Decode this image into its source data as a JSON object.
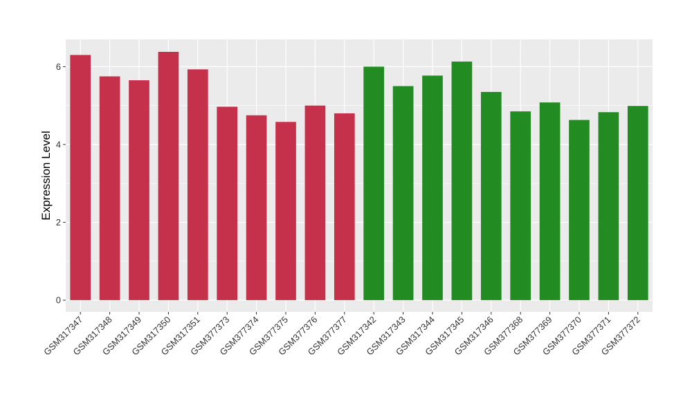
{
  "chart_data": {
    "type": "bar",
    "title": "",
    "xlabel": "",
    "ylabel": "Expression Level",
    "ylim": [
      -0.3,
      6.7
    ],
    "yticks": [
      0,
      2,
      4,
      6
    ],
    "grid": true,
    "legend": "none",
    "colors": {
      "group1": "#C5304A",
      "group2": "#228B22",
      "panel": "#EBEBEB",
      "grid": "#FFFFFF",
      "tick": "#333333"
    },
    "categories": [
      "GSM317347",
      "GSM317348",
      "GSM317349",
      "GSM317350",
      "GSM317351",
      "GSM377373",
      "GSM377374",
      "GSM377375",
      "GSM377376",
      "GSM377377",
      "GSM317342",
      "GSM317343",
      "GSM317344",
      "GSM317345",
      "GSM317346",
      "GSM377368",
      "GSM377369",
      "GSM377370",
      "GSM377371",
      "GSM377372"
    ],
    "values": [
      6.3,
      5.75,
      5.65,
      6.38,
      5.93,
      4.97,
      4.75,
      4.58,
      5.0,
      4.8,
      6.0,
      5.5,
      5.77,
      6.13,
      5.35,
      4.85,
      5.08,
      4.63,
      4.83,
      4.99
    ],
    "groups": [
      1,
      1,
      1,
      1,
      1,
      1,
      1,
      1,
      1,
      1,
      2,
      2,
      2,
      2,
      2,
      2,
      2,
      2,
      2,
      2
    ]
  }
}
